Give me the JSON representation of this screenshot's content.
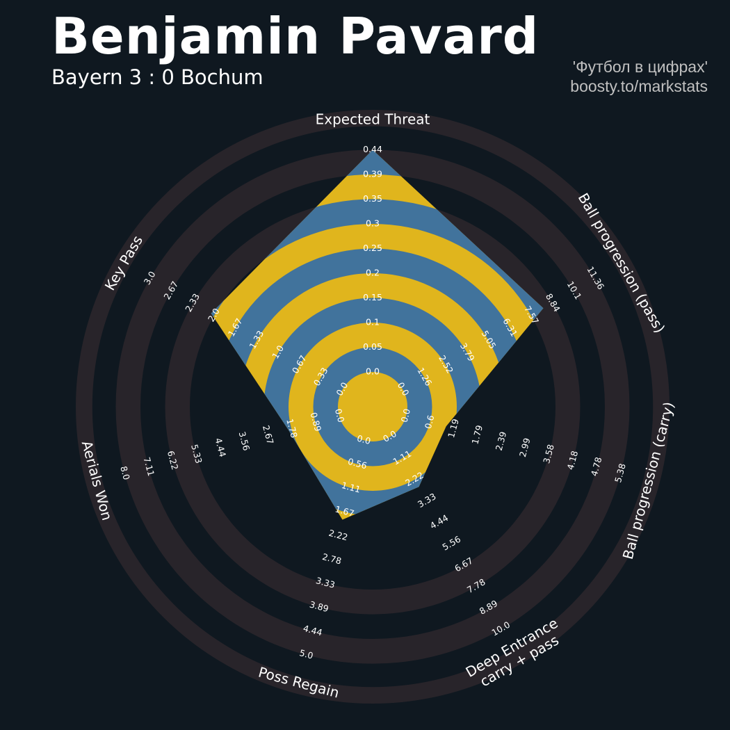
{
  "header": {
    "title": "Benjamin Pavard",
    "subtitle": "Bayern 3 : 0 Bochum",
    "credit_line1": "'Футбол в цифрах'",
    "credit_line2": "boosty.to/markstats"
  },
  "colors": {
    "background": "#0f1820",
    "ring": "#28242a",
    "polygon_blue": "#41739c",
    "polygon_gold": "#e0b51d",
    "text": "#ffffff",
    "credit": "#c0c0c0"
  },
  "chart_data": {
    "type": "radar",
    "title": "Benjamin Pavard",
    "subtitle": "Bayern 3 : 0 Bochum",
    "params": [
      {
        "label": "Expected Threat",
        "angle": 0,
        "min": 0.0,
        "max": 0.44,
        "value": 0.44,
        "ticks": [
          "0.0",
          "0.05",
          "0.1",
          "0.15",
          "0.2",
          "0.25",
          "0.3",
          "0.35",
          "0.39",
          "0.44"
        ]
      },
      {
        "label": "Ball progression (pass)",
        "angle": 60,
        "min": 0.0,
        "max": 11.36,
        "value": 8.3,
        "ticks": [
          "0.0",
          "1.26",
          "2.52",
          "3.79",
          "5.05",
          "6.31",
          "7.57",
          "8.84",
          "10.1",
          "11.36"
        ]
      },
      {
        "label": "Ball progression (carry)",
        "angle": 105,
        "min": 0.0,
        "max": 5.38,
        "value": 1.0,
        "ticks": [
          "0.0",
          "0.6",
          "1.19",
          "1.79",
          "2.39",
          "2.99",
          "3.58",
          "4.18",
          "4.78",
          "5.38"
        ]
      },
      {
        "label": "Deep Entrance\ncarry + pass",
        "angle": 150,
        "min": 0.0,
        "max": 10.0,
        "value": 2.6,
        "ticks": [
          "0.0",
          "1.11",
          "2.22",
          "3.33",
          "4.44",
          "5.56",
          "6.67",
          "7.78",
          "8.89",
          "10.0"
        ]
      },
      {
        "label": "Poss Regain",
        "angle": 195,
        "min": 0.0,
        "max": 5.0,
        "value": 1.85,
        "ticks": [
          "0.0",
          "0.56",
          "1.11",
          "1.67",
          "2.22",
          "2.78",
          "3.33",
          "3.89",
          "4.44",
          "5.0"
        ]
      },
      {
        "label": "Aerials Won",
        "angle": 255,
        "min": 0.0,
        "max": 8.0,
        "value": 1.9,
        "ticks": [
          "0.0",
          "0.89",
          "1.78",
          "2.67",
          "3.56",
          "4.44",
          "5.33",
          "6.22",
          "7.11",
          "8.0"
        ]
      },
      {
        "label": "Key Pass",
        "angle": 300,
        "min": 0.0,
        "max": 3.0,
        "value": 2.05,
        "ticks": [
          "0.0",
          "0.33",
          "0.67",
          "1.0",
          "1.33",
          "1.67",
          "2.0",
          "2.33",
          "2.67",
          "3.0"
        ]
      }
    ]
  }
}
